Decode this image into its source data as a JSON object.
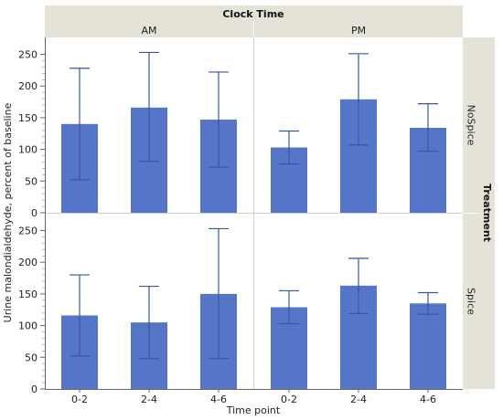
{
  "chart_data": {
    "type": "bar",
    "top_strip_title": "Clock Time",
    "columns": [
      "AM",
      "PM"
    ],
    "right_strip_title": "Treatment",
    "rows": [
      "NoSpice",
      "Spice"
    ],
    "categories": [
      "0-2",
      "2-4",
      "4-6"
    ],
    "xlabel": "Time point",
    "ylabel": "Urine malondialdehyde, percent of baseline",
    "ylim": [
      0,
      260
    ],
    "yticks": [
      0,
      50,
      100,
      150,
      200,
      250
    ],
    "panels": [
      {
        "row": "NoSpice",
        "column": "AM",
        "values": [
          140,
          166,
          147
        ],
        "err_low": [
          52,
          81,
          72
        ],
        "err_high": [
          228,
          253,
          222
        ]
      },
      {
        "row": "NoSpice",
        "column": "PM",
        "values": [
          103,
          179,
          134
        ],
        "err_low": [
          77,
          107,
          97
        ],
        "err_high": [
          129,
          251,
          172
        ]
      },
      {
        "row": "Spice",
        "column": "AM",
        "values": [
          116,
          105,
          150
        ],
        "err_low": [
          52,
          48,
          48
        ],
        "err_high": [
          180,
          162,
          253
        ]
      },
      {
        "row": "Spice",
        "column": "PM",
        "values": [
          129,
          163,
          135
        ],
        "err_low": [
          103,
          119,
          118
        ],
        "err_high": [
          155,
          206,
          152
        ]
      }
    ],
    "bar_color": "#5576c8",
    "error_bar_color": "#3a56a0",
    "grid": false
  }
}
